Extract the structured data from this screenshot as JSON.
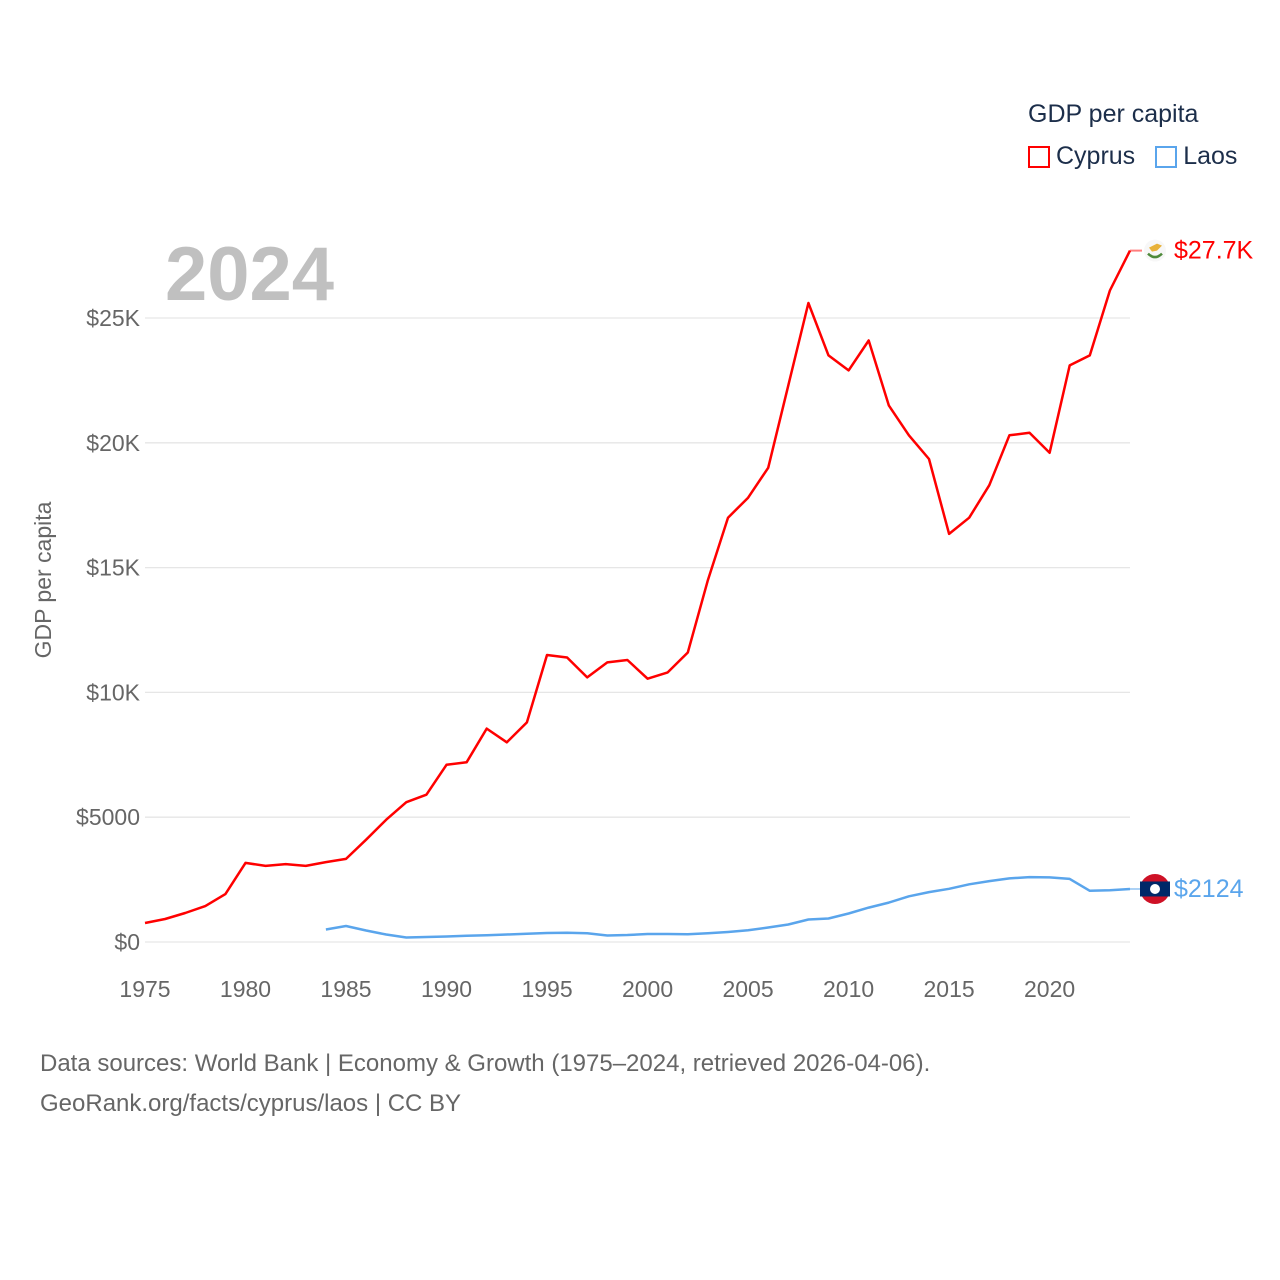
{
  "chart_data": {
    "type": "line",
    "title": "GDP per capita",
    "ylabel": "GDP per capita",
    "xlabel": "",
    "year_label": "2024",
    "xlim": [
      1975,
      2024
    ],
    "ylim": [
      0,
      27700
    ],
    "x_ticks": [
      "1975",
      "1980",
      "1985",
      "1990",
      "1995",
      "2000",
      "2005",
      "2010",
      "2015",
      "2020"
    ],
    "y_ticks": [
      {
        "value": 0,
        "label": "$0"
      },
      {
        "value": 5000,
        "label": "$5000"
      },
      {
        "value": 10000,
        "label": "$10K"
      },
      {
        "value": 15000,
        "label": "$15K"
      },
      {
        "value": 20000,
        "label": "$20K"
      },
      {
        "value": 25000,
        "label": "$25K"
      }
    ],
    "grid": true,
    "legend_placement": "top-right",
    "series": [
      {
        "name": "Cyprus",
        "color": "#ff0000",
        "end_label": "$27.7K",
        "flag_icon": "cyprus-flag",
        "start_year": 1975,
        "values": [
          760,
          920,
          1160,
          1440,
          1920,
          3170,
          3050,
          3120,
          3050,
          3200,
          3330,
          4100,
          4900,
          5600,
          5900,
          7100,
          7200,
          8550,
          8000,
          8800,
          11500,
          11400,
          10600,
          11200,
          11300,
          10550,
          10800,
          11600,
          14500,
          17000,
          17800,
          19000,
          22300,
          25600,
          23500,
          22900,
          24100,
          21500,
          20300,
          19350,
          16350,
          17000,
          18300,
          20300,
          20400,
          19600,
          23100,
          23500,
          26100,
          27700
        ]
      },
      {
        "name": "Laos",
        "color": "#5aa5ec",
        "end_label": "$2124",
        "flag_icon": "laos-flag",
        "start_year": 1984,
        "values": [
          500,
          640,
          460,
          300,
          180,
          200,
          220,
          250,
          270,
          300,
          330,
          360,
          370,
          350,
          260,
          280,
          320,
          320,
          310,
          350,
          400,
          470,
          580,
          700,
          900,
          940,
          1140,
          1380,
          1580,
          1830,
          2000,
          2130,
          2310,
          2440,
          2550,
          2600,
          2590,
          2530,
          2050,
          2070,
          2124
        ]
      }
    ]
  },
  "footer": {
    "line1": "Data sources: World Bank | Economy & Growth (1975–2024, retrieved 2026-04-06).",
    "line2": "GeoRank.org/facts/cyprus/laos | CC BY"
  }
}
